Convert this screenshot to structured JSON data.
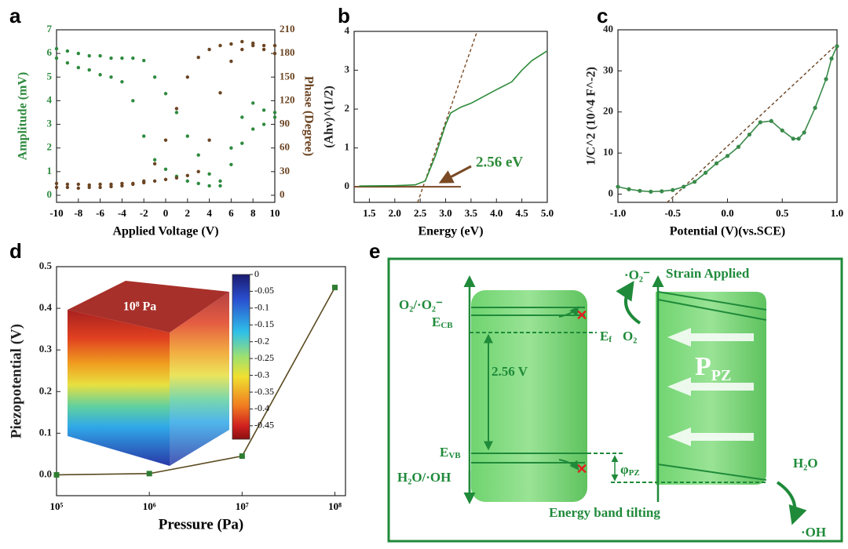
{
  "chart_data": [
    {
      "type": "scatter",
      "label": "a",
      "x_label": "Applied Voltage (V)",
      "y_label": "Amplitude (mV)",
      "y2_label": "Phase (Degree)",
      "x": [
        -10,
        -9,
        -8,
        -7,
        -6,
        -5,
        -4,
        -3,
        -2,
        -1,
        0,
        1,
        2,
        3,
        4,
        5,
        6,
        7,
        8,
        9,
        10
      ],
      "xlim": [
        -10,
        10
      ],
      "xticks": [
        -10,
        -8,
        -6,
        -4,
        -2,
        0,
        2,
        4,
        6,
        8,
        10
      ],
      "ylim": [
        -0.3,
        7
      ],
      "yticks": [
        0,
        1,
        2,
        3,
        4,
        5,
        6,
        7
      ],
      "y2lim": [
        -9,
        210
      ],
      "y2ticks": [
        0,
        30,
        60,
        90,
        120,
        150,
        180,
        210
      ],
      "y_color": "#2d8a3e",
      "y2_color": "#6b4423",
      "series": [
        {
          "color": "#2d8a3e",
          "values": [
            6.2,
            6.1,
            6.0,
            5.9,
            5.9,
            5.8,
            5.8,
            5.8,
            5.7,
            5.0,
            4.3,
            3.5,
            2.5,
            1.7,
            0.9,
            0.4,
            2.0,
            3.3,
            3.9,
            3.6,
            3.3
          ]
        },
        {
          "color": "#2d8a3e",
          "values": [
            5.8,
            5.6,
            5.4,
            5.3,
            5.1,
            5.0,
            4.8,
            4.0,
            2.5,
            1.5,
            1.1,
            0.8,
            0.6,
            0.5,
            0.4,
            0.6,
            1.3,
            2.2,
            2.8,
            3.0,
            3.5
          ]
        },
        {
          "color": "#6b4423",
          "axis": "y2",
          "values": [
            10,
            10,
            9,
            10,
            10,
            11,
            12,
            14,
            18,
            40,
            70,
            110,
            150,
            175,
            185,
            190,
            192,
            195,
            193,
            190,
            190
          ]
        },
        {
          "color": "#6b4423",
          "axis": "y2",
          "values": [
            15,
            14,
            14,
            13,
            14,
            14,
            15,
            15,
            16,
            18,
            20,
            22,
            25,
            30,
            70,
            130,
            170,
            185,
            190,
            185,
            180
          ]
        }
      ]
    },
    {
      "type": "line",
      "label": "b",
      "x_label": "Energy (eV)",
      "y_label": "(Ahv)^(1/2)",
      "annotation": "2.56 eV",
      "xlim": [
        1.2,
        5.0
      ],
      "xticks": [
        1.5,
        {
          "value": 2.0,
          "label": "2.0"
        },
        2.5,
        {
          "value": 3.0,
          "label": "3.0"
        },
        3.5,
        {
          "value": 4.0,
          "label": "4.0"
        },
        4.5,
        {
          "value": 5.0,
          "label": "5.0"
        }
      ],
      "ylim": [
        -0.4,
        4
      ],
      "yticks": [
        0,
        1,
        2,
        3,
        4
      ],
      "series": [
        {
          "color": "#2e8b3a",
          "x": [
            1.3,
            2.0,
            2.4,
            2.6,
            2.8,
            3.0,
            3.1,
            3.3,
            3.5,
            4.0,
            4.3,
            4.5,
            4.7,
            5.0
          ],
          "values": [
            0.02,
            0.03,
            0.05,
            0.15,
            0.8,
            1.6,
            1.9,
            2.05,
            2.15,
            2.5,
            2.7,
            3.0,
            3.25,
            3.5
          ]
        }
      ],
      "reference_lines": [
        {
          "color": "#7a4a24",
          "dash": false,
          "x": [
            1.2,
            3.3
          ],
          "y": [
            0,
            0
          ]
        },
        {
          "color": "#7a4a24",
          "dash": true,
          "x": [
            2.45,
            3.62
          ],
          "y": [
            -0.4,
            4
          ]
        }
      ]
    },
    {
      "type": "line",
      "label": "c",
      "x_label": "Potential (V)(vs.SCE)",
      "y_label": "1/C^2 (10^4 F^-2)",
      "xlim": [
        -1,
        1
      ],
      "xticks": [
        {
          "value": -1,
          "label": "-1.0"
        },
        -0.5,
        {
          "value": 0,
          "label": "0.0"
        },
        0.5,
        {
          "value": 1,
          "label": "1.0"
        }
      ],
      "ylim": [
        -2,
        40
      ],
      "yticks": [
        0,
        10,
        20,
        30,
        40
      ],
      "series": [
        {
          "color": "#3a8a4a",
          "marker": "circle",
          "x": [
            -1,
            -0.9,
            -0.8,
            -0.7,
            -0.6,
            -0.5,
            -0.4,
            -0.3,
            -0.2,
            -0.1,
            0,
            0.1,
            0.2,
            0.3,
            0.4,
            0.5,
            0.6,
            0.65,
            0.7,
            0.8,
            0.9,
            0.95,
            1.0
          ],
          "values": [
            1.8,
            1.2,
            0.8,
            0.6,
            0.7,
            1.0,
            1.8,
            3.0,
            5.2,
            7.5,
            9.3,
            11.5,
            14.5,
            17.5,
            17.8,
            15.5,
            13.5,
            13.5,
            15,
            21,
            28,
            33,
            36
          ]
        }
      ],
      "reference_lines": [
        {
          "color": "#6b4423",
          "dash": true,
          "x": [
            -0.55,
            1
          ],
          "y": [
            -2,
            36.5
          ]
        }
      ]
    },
    {
      "type": "line",
      "label": "d",
      "x_label": "Pressure (Pa)",
      "y_label": "Piezopotential (V)",
      "xlog": true,
      "xlim": [
        100000,
        130000000
      ],
      "xticks": [
        {
          "value": 100000,
          "label": "10⁵"
        },
        {
          "value": 1000000,
          "label": "10⁶"
        },
        {
          "value": 10000000,
          "label": "10⁷"
        },
        {
          "value": 100000000,
          "label": "10⁸"
        }
      ],
      "ylim": [
        -0.05,
        0.5
      ],
      "yticks": [
        {
          "value": 0,
          "label": "0.0"
        },
        0.1,
        0.2,
        0.3,
        0.4,
        0.5
      ],
      "series": [
        {
          "color": "#5a4a20",
          "marker": "square",
          "marker_color": "#2e7d32",
          "x": [
            100000,
            1000000,
            10000000,
            100000000
          ],
          "values": [
            0.0,
            0.003,
            0.045,
            0.45
          ]
        }
      ],
      "inset_label": "10⁸ Pa",
      "colorbar": {
        "range": [
          0,
          -0.49
        ],
        "ticks": [
          0,
          -0.05,
          -0.1,
          -0.15,
          -0.2,
          -0.25,
          -0.3,
          -0.35,
          -0.4,
          -0.45
        ]
      }
    }
  ],
  "diagram": {
    "label": "e",
    "left": {
      "redox_top": "O₂/·O₂⁻",
      "ecb": [
        "E",
        "CB"
      ],
      "ef": [
        "E",
        "f"
      ],
      "gap": "2.56 V",
      "evb": [
        "E",
        "VB"
      ],
      "redox_bottom": "H₂O/·OH"
    },
    "right": {
      "o2_minus": "·O₂⁻",
      "o2": "O₂",
      "strain": "Strain Applied",
      "ppz": [
        "P",
        "PZ"
      ],
      "phi": [
        "φ",
        "PZ"
      ],
      "h2o": "H₂O",
      "oh": "·OH"
    },
    "caption": "Energy band tilting"
  }
}
